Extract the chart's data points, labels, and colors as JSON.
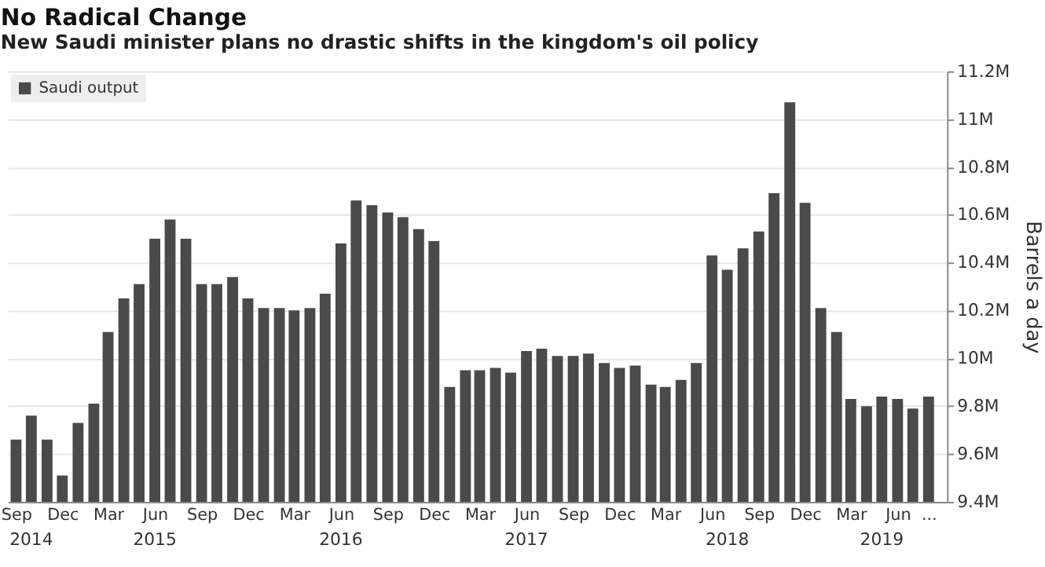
{
  "chart_data": {
    "type": "bar",
    "title": "No Radical Change",
    "subtitle": "New Saudi minister plans no drastic shifts in the kingdom's oil policy",
    "ylabel": "Barrels a day",
    "x": [
      "2014-09",
      "2014-10",
      "2014-11",
      "2014-12",
      "2015-01",
      "2015-02",
      "2015-03",
      "2015-04",
      "2015-05",
      "2015-06",
      "2015-07",
      "2015-08",
      "2015-09",
      "2015-10",
      "2015-11",
      "2015-12",
      "2016-01",
      "2016-02",
      "2016-03",
      "2016-04",
      "2016-05",
      "2016-06",
      "2016-07",
      "2016-08",
      "2016-09",
      "2016-10",
      "2016-11",
      "2016-12",
      "2017-01",
      "2017-02",
      "2017-03",
      "2017-04",
      "2017-05",
      "2017-06",
      "2017-07",
      "2017-08",
      "2017-09",
      "2017-10",
      "2017-11",
      "2017-12",
      "2018-01",
      "2018-02",
      "2018-03",
      "2018-04",
      "2018-05",
      "2018-06",
      "2018-07",
      "2018-08",
      "2018-09",
      "2018-10",
      "2018-11",
      "2018-12",
      "2019-01",
      "2019-02",
      "2019-03",
      "2019-04",
      "2019-05",
      "2019-06",
      "2019-07",
      "2019-08"
    ],
    "series": [
      {
        "name": "Saudi output",
        "color": "#4a4a4a",
        "values": [
          9.66,
          9.76,
          9.66,
          9.51,
          9.73,
          9.81,
          10.11,
          10.25,
          10.31,
          10.5,
          10.58,
          10.5,
          10.31,
          10.31,
          10.34,
          10.25,
          10.21,
          10.21,
          10.2,
          10.21,
          10.27,
          10.48,
          10.66,
          10.64,
          10.61,
          10.59,
          10.54,
          10.49,
          9.88,
          9.95,
          9.95,
          9.96,
          9.94,
          10.03,
          10.04,
          10.01,
          10.01,
          10.02,
          9.98,
          9.96,
          9.97,
          9.89,
          9.88,
          9.91,
          9.98,
          10.43,
          10.37,
          10.46,
          10.53,
          10.69,
          11.07,
          10.65,
          10.21,
          10.11,
          9.83,
          9.8,
          9.84,
          9.83,
          9.79,
          9.84
        ]
      }
    ],
    "xlim": [
      "2014-08-31",
      "2019-08-22"
    ],
    "xticks": [
      {
        "value": "2014-09",
        "label": "Sep"
      },
      {
        "value": "2014-12",
        "label": "Dec"
      },
      {
        "value": "2015-03",
        "label": "Mar"
      },
      {
        "value": "2015-06",
        "label": "Jun"
      },
      {
        "value": "2015-09",
        "label": "Sep"
      },
      {
        "value": "2015-12",
        "label": "Dec"
      },
      {
        "value": "2016-03",
        "label": "Mar"
      },
      {
        "value": "2016-06",
        "label": "Jun"
      },
      {
        "value": "2016-09",
        "label": "Sep"
      },
      {
        "value": "2016-12",
        "label": "Dec"
      },
      {
        "value": "2017-03",
        "label": "Mar"
      },
      {
        "value": "2017-06",
        "label": "Jun"
      },
      {
        "value": "2017-09",
        "label": "Sep"
      },
      {
        "value": "2017-12",
        "label": "Dec"
      },
      {
        "value": "2018-03",
        "label": "Mar"
      },
      {
        "value": "2018-06",
        "label": "Jun"
      },
      {
        "value": "2018-09",
        "label": "Sep"
      },
      {
        "value": "2018-12",
        "label": "Dec"
      },
      {
        "value": "2019-03",
        "label": "Mar"
      },
      {
        "value": "2019-06",
        "label": "Jun"
      },
      {
        "value": "2019-08",
        "label": "..."
      }
    ],
    "ylim": [
      9.4,
      11.2
    ],
    "yticks": [
      {
        "value": 9.4,
        "label": "9.4M"
      },
      {
        "value": 9.6,
        "label": "9.6M"
      },
      {
        "value": 9.8,
        "label": "9.8M"
      },
      {
        "value": 10,
        "label": "10M"
      },
      {
        "value": 10.2,
        "label": "10.2M"
      },
      {
        "value": 10.4,
        "label": "10.4M"
      },
      {
        "value": 10.6,
        "label": "10.6M"
      },
      {
        "value": 10.8,
        "label": "10.8M"
      },
      {
        "value": 11,
        "label": "11M"
      },
      {
        "value": 11.2,
        "label": "11.2M"
      }
    ],
    "annotations": [
      {
        "text": "2014",
        "x": "2014-10"
      },
      {
        "text": "2015",
        "x": "2015-06"
      },
      {
        "text": "2016",
        "x": "2016-06"
      },
      {
        "text": "2017",
        "x": "2017-06"
      },
      {
        "text": "2018",
        "x": "2018-07"
      },
      {
        "text": "2019",
        "x": "2019-05"
      }
    ],
    "grid": "y",
    "legend": "top left"
  }
}
